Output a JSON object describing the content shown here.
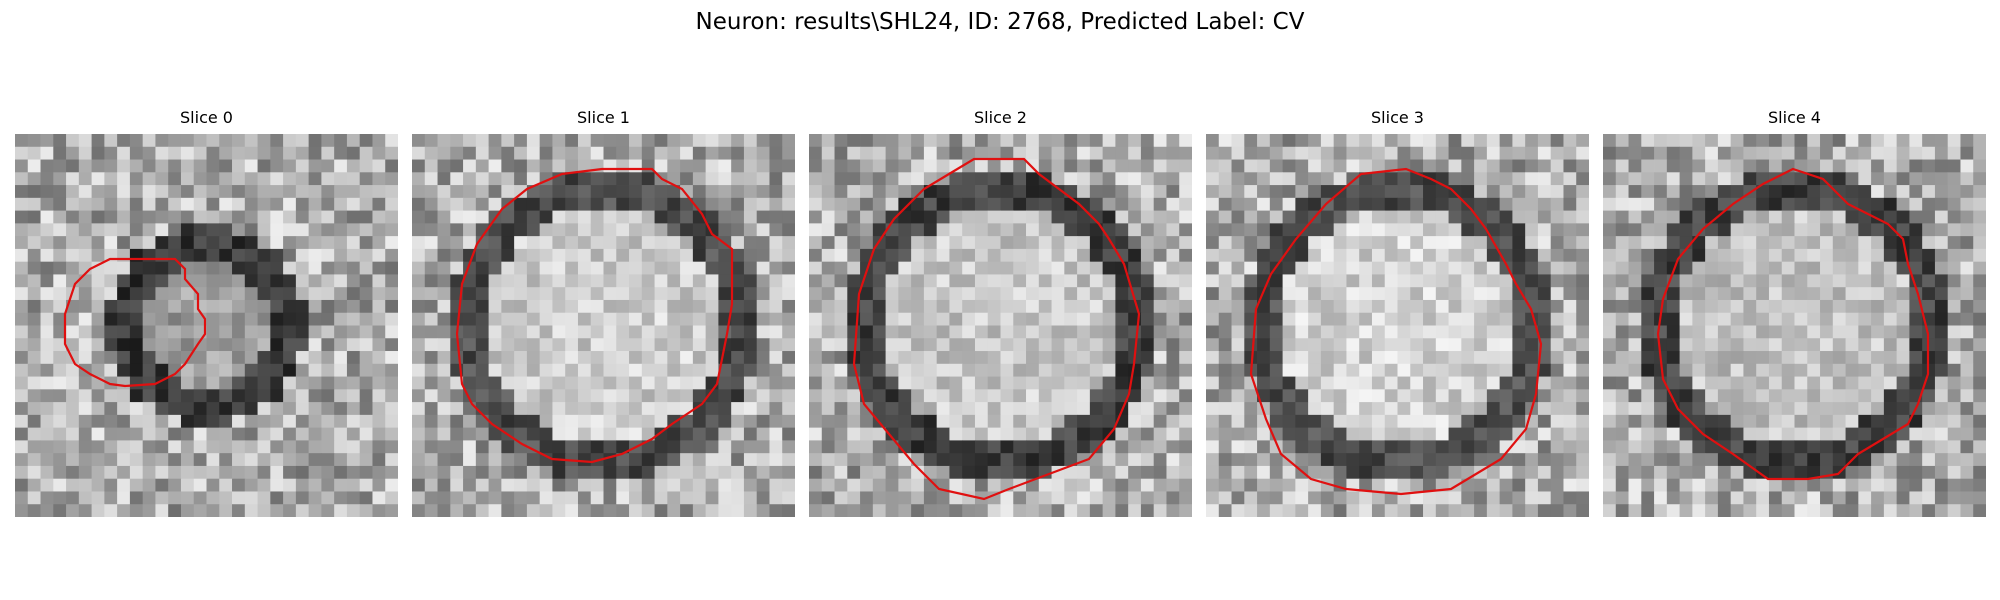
{
  "figure": {
    "title": "Neuron: results\\SHL24, ID: 2768, Predicted Label: CV"
  },
  "panels": [
    {
      "title": "Slice 0",
      "seed": 11,
      "inner_bright": 0.62,
      "ring_dark": 0.22
    },
    {
      "title": "Slice 1",
      "seed": 23,
      "inner_bright": 0.8,
      "ring_dark": 0.3
    },
    {
      "title": "Slice 2",
      "seed": 37,
      "inner_bright": 0.78,
      "ring_dark": 0.25
    },
    {
      "title": "Slice 3",
      "seed": 41,
      "inner_bright": 0.82,
      "ring_dark": 0.3
    },
    {
      "title": "Slice 4",
      "seed": 59,
      "inner_bright": 0.76,
      "ring_dark": 0.26
    }
  ],
  "colors": {
    "contour": "#e01010",
    "background": "#ffffff"
  }
}
